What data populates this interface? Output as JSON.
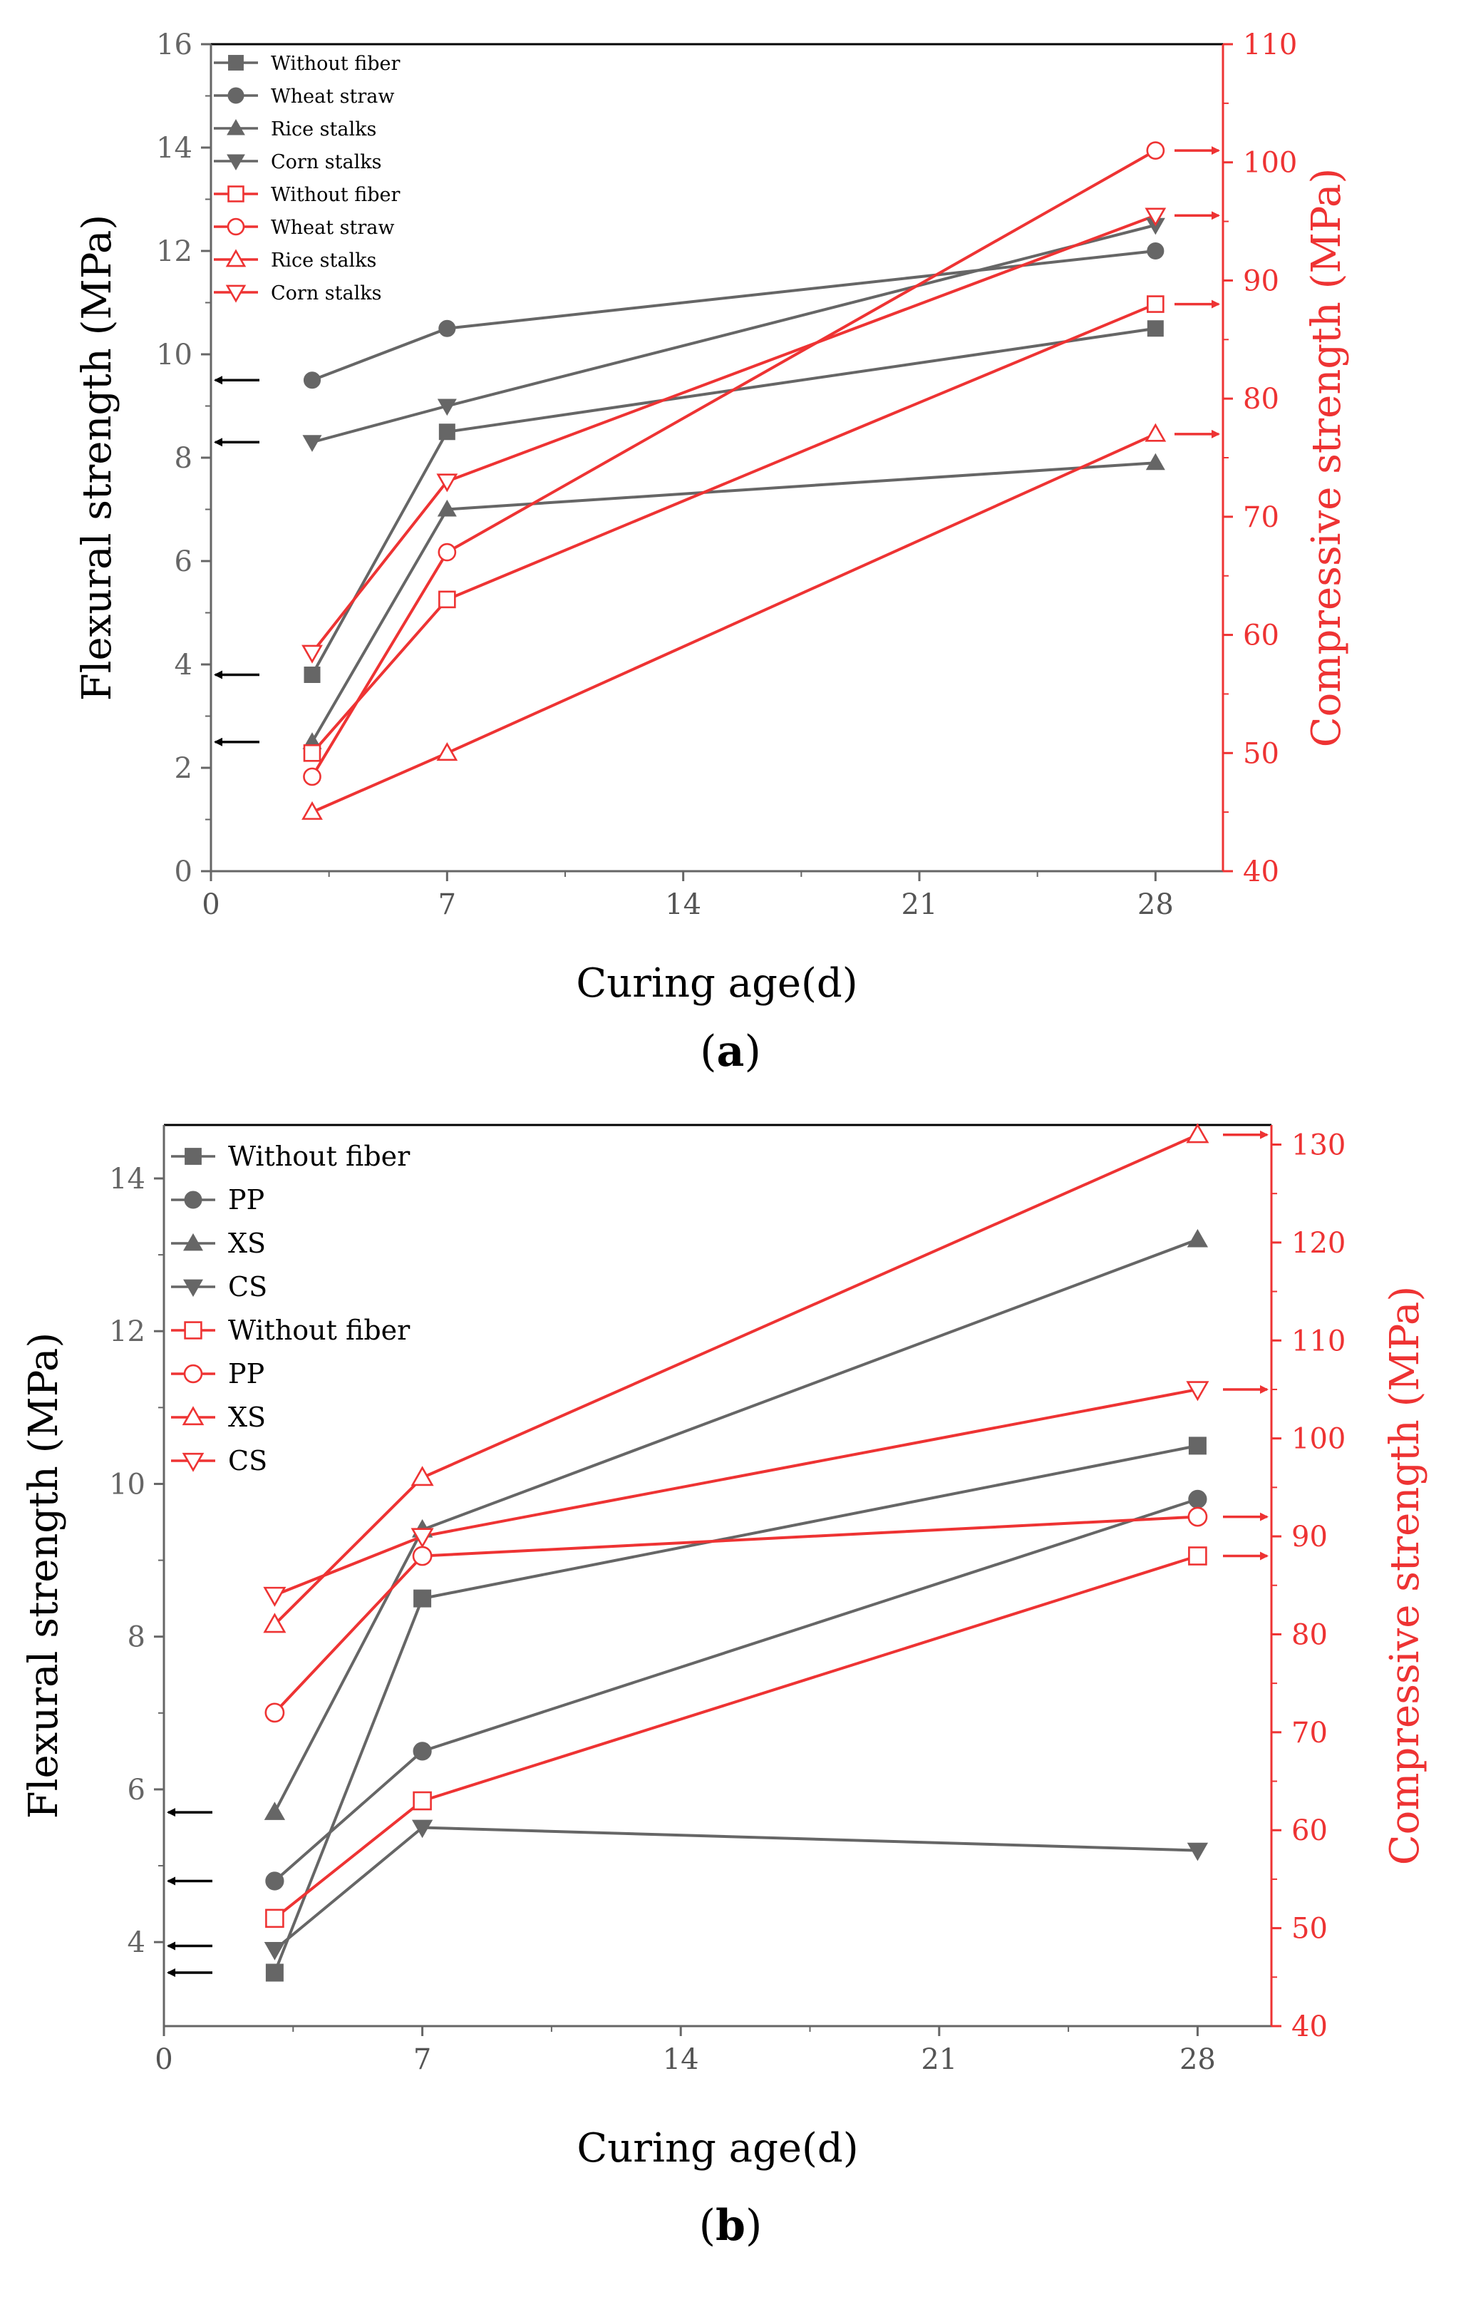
{
  "colors": {
    "flexural": "#666666",
    "compressive": "#ee3333",
    "axis_left": "#666666",
    "axis_right": "#ee3333",
    "frame": "#000000"
  },
  "chart_data": [
    {
      "type": "line",
      "panel_label": "a",
      "xlabel": "Curing age(d)",
      "ylabel_left": "Flexural strength (MPa)",
      "ylabel_right": "Compressive strength (MPa)",
      "xlim": [
        0,
        30
      ],
      "ylim_left": [
        0,
        16
      ],
      "ylim_right": [
        40,
        110
      ],
      "x_ticks": [
        0,
        7,
        14,
        21,
        28
      ],
      "y_left_ticks": [
        0,
        2,
        4,
        6,
        8,
        10,
        12,
        14,
        16
      ],
      "y_right_ticks": [
        40,
        50,
        60,
        70,
        80,
        90,
        100,
        110
      ],
      "series": [
        {
          "name": "Without fiber",
          "axis": "left",
          "marker": "square",
          "filled": true,
          "x": [
            3,
            7,
            28
          ],
          "values": [
            3.8,
            8.5,
            10.5
          ]
        },
        {
          "name": "Wheat straw",
          "axis": "left",
          "marker": "circle",
          "filled": true,
          "x": [
            3,
            7,
            28
          ],
          "values": [
            9.5,
            10.5,
            12.0
          ]
        },
        {
          "name": "Rice stalks",
          "axis": "left",
          "marker": "triangle-up",
          "filled": true,
          "x": [
            3,
            7,
            28
          ],
          "values": [
            2.5,
            7.0,
            7.9
          ]
        },
        {
          "name": "Corn stalks",
          "axis": "left",
          "marker": "triangle-down",
          "filled": true,
          "x": [
            3,
            7,
            28
          ],
          "values": [
            8.3,
            9.0,
            12.5
          ]
        },
        {
          "name": "Without fiber",
          "axis": "right",
          "marker": "square",
          "filled": false,
          "x": [
            3,
            7,
            28
          ],
          "values": [
            50,
            63,
            88
          ]
        },
        {
          "name": "Wheat straw",
          "axis": "right",
          "marker": "circle",
          "filled": false,
          "x": [
            3,
            7,
            28
          ],
          "values": [
            48,
            67,
            101
          ]
        },
        {
          "name": "Rice stalks",
          "axis": "right",
          "marker": "triangle-up",
          "filled": false,
          "x": [
            3,
            7,
            28
          ],
          "values": [
            45,
            50,
            77
          ]
        },
        {
          "name": "Corn stalks",
          "axis": "right",
          "marker": "triangle-down",
          "filled": false,
          "x": [
            3,
            7,
            28
          ],
          "values": [
            58.5,
            73,
            95.5
          ]
        }
      ],
      "left_arrows_at": [
        9.5,
        8.3,
        3.8,
        2.5
      ],
      "right_arrows_at": [
        101,
        95.5,
        88,
        77
      ]
    },
    {
      "type": "line",
      "panel_label": "b",
      "xlabel": "Curing age(d)",
      "ylabel_left": "Flexural strength (MPa)",
      "ylabel_right": "Compressive strength (MPa)",
      "xlim": [
        0,
        30
      ],
      "ylim_left": [
        2.9,
        14.7
      ],
      "ylim_right": [
        40,
        132
      ],
      "x_ticks": [
        0,
        7,
        14,
        21,
        28
      ],
      "y_left_ticks": [
        4,
        6,
        8,
        10,
        12,
        14
      ],
      "y_right_ticks": [
        40,
        50,
        60,
        70,
        80,
        90,
        100,
        110,
        120,
        130
      ],
      "series": [
        {
          "name": "Without fiber",
          "axis": "left",
          "marker": "square",
          "filled": true,
          "x": [
            3,
            7,
            28
          ],
          "values": [
            3.6,
            8.5,
            10.5
          ]
        },
        {
          "name": "PP",
          "axis": "left",
          "marker": "circle",
          "filled": true,
          "x": [
            3,
            7,
            28
          ],
          "values": [
            4.8,
            6.5,
            9.8
          ]
        },
        {
          "name": "XS",
          "axis": "left",
          "marker": "triangle-up",
          "filled": true,
          "x": [
            3,
            7,
            28
          ],
          "values": [
            5.7,
            9.4,
            13.2
          ]
        },
        {
          "name": "CS",
          "axis": "left",
          "marker": "triangle-down",
          "filled": true,
          "x": [
            3,
            7,
            28
          ],
          "values": [
            3.9,
            5.5,
            5.2
          ]
        },
        {
          "name": "Without fiber",
          "axis": "right",
          "marker": "square",
          "filled": false,
          "x": [
            3,
            7,
            28
          ],
          "values": [
            51,
            63,
            88
          ]
        },
        {
          "name": "PP",
          "axis": "right",
          "marker": "circle",
          "filled": false,
          "x": [
            3,
            7,
            28
          ],
          "values": [
            72,
            88,
            92
          ]
        },
        {
          "name": "XS",
          "axis": "right",
          "marker": "triangle-up",
          "filled": false,
          "x": [
            3,
            7,
            28
          ],
          "values": [
            81,
            96,
            131
          ]
        },
        {
          "name": "CS",
          "axis": "right",
          "marker": "triangle-down",
          "filled": false,
          "x": [
            3,
            7,
            28
          ],
          "values": [
            84,
            90,
            105
          ]
        }
      ],
      "left_arrows_at": [
        5.7,
        4.8,
        3.95,
        3.6
      ],
      "right_arrows_at": [
        131,
        105,
        92,
        88
      ]
    }
  ]
}
